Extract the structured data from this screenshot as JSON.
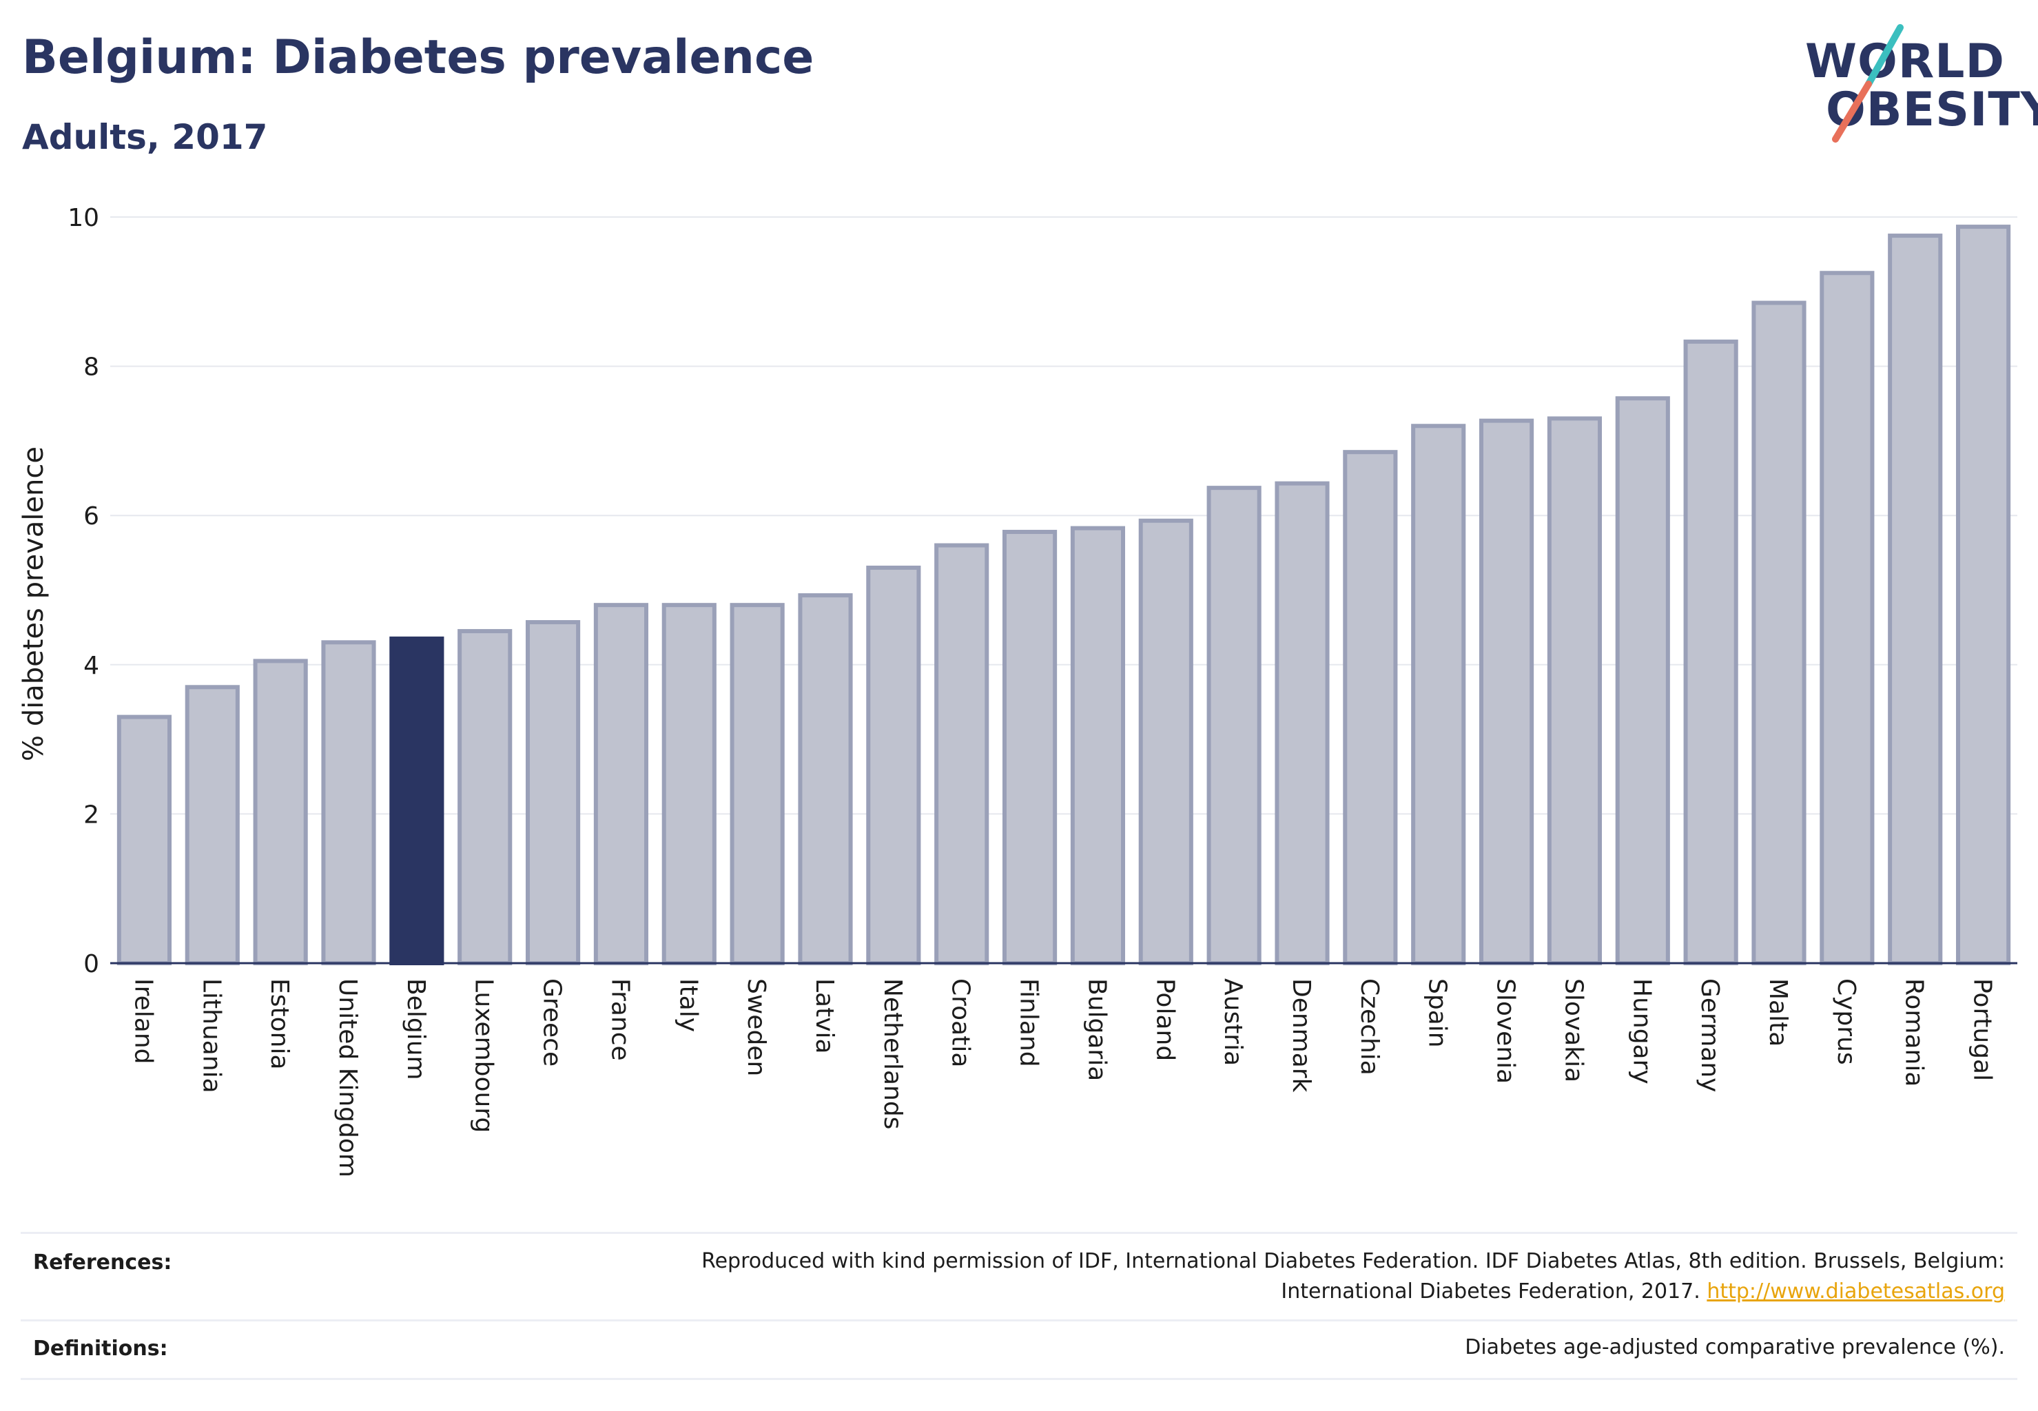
{
  "header": {
    "title": "Belgium: Diabetes prevalence",
    "subtitle": "Adults, 2017"
  },
  "logo": {
    "line1": "WORLD",
    "line2": "OBESITY",
    "accent_teal": "#3bbfbf",
    "accent_coral": "#e8705a"
  },
  "colors": {
    "highlight": "#2a3562",
    "bar": "#bfc2cf",
    "bar_border": "#9aa0b8",
    "grid": "#e6e8ee",
    "axis": "#2a3562"
  },
  "chart_data": {
    "type": "bar",
    "ylabel": "% diabetes prevalence",
    "xlabel": "",
    "ylim": [
      0,
      10
    ],
    "yticks": [
      0,
      2,
      4,
      6,
      8,
      10
    ],
    "grid": true,
    "highlight": "Belgium",
    "categories": [
      "Ireland",
      "Lithuania",
      "Estonia",
      "United Kingdom",
      "Belgium",
      "Luxembourg",
      "Greece",
      "France",
      "Italy",
      "Sweden",
      "Latvia",
      "Netherlands",
      "Croatia",
      "Finland",
      "Bulgaria",
      "Poland",
      "Austria",
      "Denmark",
      "Czechia",
      "Spain",
      "Slovenia",
      "Slovakia",
      "Hungary",
      "Germany",
      "Malta",
      "Cyprus",
      "Romania",
      "Portugal"
    ],
    "values": [
      3.3,
      3.7,
      4.05,
      4.3,
      4.35,
      4.45,
      4.57,
      4.8,
      4.8,
      4.8,
      4.93,
      5.3,
      5.6,
      5.78,
      5.83,
      5.93,
      6.37,
      6.43,
      6.85,
      7.2,
      7.27,
      7.3,
      7.57,
      8.33,
      8.85,
      9.25,
      9.75,
      9.87
    ]
  },
  "references": {
    "label": "References:",
    "line1": "Reproduced with kind permission of IDF, International Diabetes Federation. IDF Diabetes Atlas, 8th edition. Brussels, Belgium:",
    "line2": "International Diabetes Federation, 2017.",
    "link": "http://www.diabetesatlas.org"
  },
  "definitions": {
    "label": "Definitions:",
    "text": "Diabetes age-adjusted comparative prevalence (%)."
  }
}
